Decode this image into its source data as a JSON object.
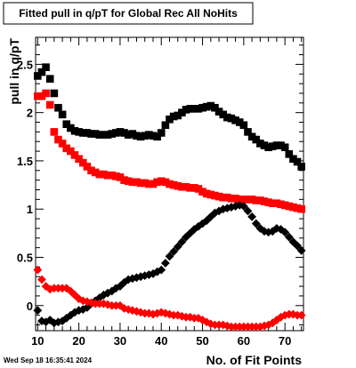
{
  "chart_data": {
    "type": "scatter",
    "title": "Fitted pull in q/pT for Global Rec All NoHits",
    "xlabel": "No. of Fit Points",
    "ylabel": "pull in q/pT",
    "timestamp": "Wed Sep 18 16:35:41 2024",
    "xlim": [
      9.5,
      74.5
    ],
    "ylim": [
      -0.26,
      2.78
    ],
    "x_ticks": [
      10,
      20,
      30,
      40,
      50,
      60,
      70
    ],
    "y_ticks": [
      0,
      0.5,
      1,
      1.5,
      2,
      2.5
    ],
    "x_tick_labels": [
      "10",
      "20",
      "30",
      "40",
      "50",
      "60",
      "70"
    ],
    "y_tick_labels": [
      "0",
      "0.5",
      "1",
      "1.5",
      "2",
      "2.5"
    ],
    "colors": {
      "black": "#000000",
      "red": "#ff0000"
    },
    "series": [
      {
        "color": "#000000",
        "marker": "square",
        "x": [
          10,
          11,
          12,
          13,
          14,
          15,
          16,
          17,
          18,
          19,
          20,
          21,
          22,
          23,
          24,
          25,
          26,
          27,
          28,
          29,
          30,
          31,
          32,
          33,
          34,
          35,
          36,
          37,
          38,
          39,
          40,
          41,
          42,
          43,
          44,
          45,
          46,
          47,
          48,
          49,
          50,
          51,
          52,
          53,
          54,
          55,
          56,
          57,
          58,
          59,
          60,
          61,
          62,
          63,
          64,
          65,
          66,
          67,
          68,
          69,
          70,
          71,
          72,
          73,
          74
        ],
        "y": [
          2.38,
          2.42,
          2.47,
          2.35,
          2.2,
          2.05,
          1.98,
          1.88,
          1.84,
          1.81,
          1.8,
          1.79,
          1.79,
          1.78,
          1.78,
          1.77,
          1.77,
          1.77,
          1.78,
          1.79,
          1.8,
          1.79,
          1.77,
          1.78,
          1.76,
          1.75,
          1.76,
          1.77,
          1.76,
          1.75,
          1.79,
          1.87,
          1.93,
          1.96,
          1.97,
          2.0,
          2.03,
          2.04,
          2.04,
          2.04,
          2.05,
          2.06,
          2.07,
          2.05,
          2.01,
          1.98,
          1.95,
          1.94,
          1.92,
          1.9,
          1.87,
          1.8,
          1.75,
          1.72,
          1.68,
          1.66,
          1.64,
          1.65,
          1.66,
          1.66,
          1.64,
          1.57,
          1.52,
          1.49,
          1.44
        ]
      },
      {
        "color": "#ff0000",
        "marker": "square",
        "x": [
          10,
          11,
          12,
          13,
          14,
          15,
          16,
          17,
          18,
          19,
          20,
          21,
          22,
          23,
          24,
          25,
          26,
          27,
          28,
          29,
          30,
          31,
          32,
          33,
          34,
          35,
          36,
          37,
          38,
          39,
          40,
          41,
          42,
          43,
          44,
          45,
          46,
          47,
          48,
          49,
          50,
          51,
          52,
          53,
          54,
          55,
          56,
          57,
          58,
          59,
          60,
          61,
          62,
          63,
          64,
          65,
          66,
          67,
          68,
          69,
          70,
          71,
          72,
          73,
          74
        ],
        "y": [
          2.17,
          2.17,
          2.2,
          2.08,
          1.8,
          1.72,
          1.68,
          1.63,
          1.6,
          1.56,
          1.52,
          1.48,
          1.44,
          1.4,
          1.38,
          1.36,
          1.36,
          1.35,
          1.35,
          1.34,
          1.33,
          1.3,
          1.29,
          1.28,
          1.28,
          1.27,
          1.27,
          1.26,
          1.26,
          1.28,
          1.29,
          1.28,
          1.26,
          1.25,
          1.24,
          1.23,
          1.23,
          1.22,
          1.22,
          1.21,
          1.18,
          1.16,
          1.15,
          1.14,
          1.13,
          1.12,
          1.12,
          1.11,
          1.11,
          1.1,
          1.1,
          1.1,
          1.1,
          1.09,
          1.09,
          1.08,
          1.07,
          1.06,
          1.06,
          1.05,
          1.04,
          1.03,
          1.02,
          1.01,
          1.0
        ]
      },
      {
        "color": "#000000",
        "marker": "diamond",
        "x": [
          10,
          11,
          12,
          13,
          14,
          15,
          16,
          17,
          18,
          19,
          20,
          21,
          22,
          23,
          24,
          25,
          26,
          27,
          28,
          29,
          30,
          31,
          32,
          33,
          34,
          35,
          36,
          37,
          38,
          39,
          40,
          41,
          42,
          43,
          44,
          45,
          46,
          47,
          48,
          49,
          50,
          51,
          52,
          53,
          54,
          55,
          56,
          57,
          58,
          59,
          60,
          61,
          62,
          63,
          64,
          65,
          66,
          67,
          68,
          69,
          70,
          71,
          72,
          73,
          74
        ],
        "y": [
          -0.05,
          -0.16,
          -0.17,
          -0.15,
          -0.18,
          -0.17,
          -0.16,
          -0.13,
          -0.1,
          -0.07,
          -0.05,
          -0.04,
          -0.02,
          0.02,
          0.05,
          0.08,
          0.11,
          0.13,
          0.15,
          0.18,
          0.2,
          0.24,
          0.27,
          0.28,
          0.29,
          0.3,
          0.31,
          0.32,
          0.33,
          0.35,
          0.37,
          0.44,
          0.51,
          0.56,
          0.61,
          0.66,
          0.71,
          0.75,
          0.79,
          0.82,
          0.85,
          0.88,
          0.92,
          0.96,
          0.98,
          1.0,
          1.01,
          1.02,
          1.03,
          1.04,
          1.03,
          0.98,
          0.92,
          0.85,
          0.8,
          0.77,
          0.76,
          0.77,
          0.8,
          0.79,
          0.76,
          0.71,
          0.66,
          0.62,
          0.57
        ]
      },
      {
        "color": "#ff0000",
        "marker": "diamond",
        "x": [
          10,
          11,
          12,
          13,
          14,
          15,
          16,
          17,
          18,
          19,
          20,
          21,
          22,
          23,
          24,
          25,
          26,
          27,
          28,
          29,
          30,
          31,
          32,
          33,
          34,
          35,
          36,
          37,
          38,
          39,
          40,
          41,
          42,
          43,
          44,
          45,
          46,
          47,
          48,
          49,
          50,
          51,
          52,
          53,
          54,
          55,
          56,
          57,
          58,
          59,
          60,
          61,
          62,
          63,
          64,
          65,
          66,
          67,
          68,
          69,
          70,
          71,
          72,
          73,
          74
        ],
        "y": [
          0.37,
          0.27,
          0.2,
          0.17,
          0.18,
          0.18,
          0.18,
          0.18,
          0.15,
          0.11,
          0.07,
          0.05,
          0.04,
          0.03,
          0.02,
          0.02,
          0.02,
          0.01,
          0.0,
          0.0,
          0.0,
          -0.03,
          -0.04,
          -0.05,
          -0.06,
          -0.07,
          -0.08,
          -0.08,
          -0.09,
          -0.08,
          -0.07,
          -0.08,
          -0.09,
          -0.1,
          -0.1,
          -0.11,
          -0.12,
          -0.12,
          -0.13,
          -0.13,
          -0.15,
          -0.17,
          -0.19,
          -0.2,
          -0.2,
          -0.2,
          -0.21,
          -0.22,
          -0.22,
          -0.22,
          -0.22,
          -0.22,
          -0.22,
          -0.22,
          -0.22,
          -0.21,
          -0.2,
          -0.18,
          -0.15,
          -0.12,
          -0.1,
          -0.09,
          -0.09,
          -0.1,
          -0.1
        ]
      }
    ]
  }
}
